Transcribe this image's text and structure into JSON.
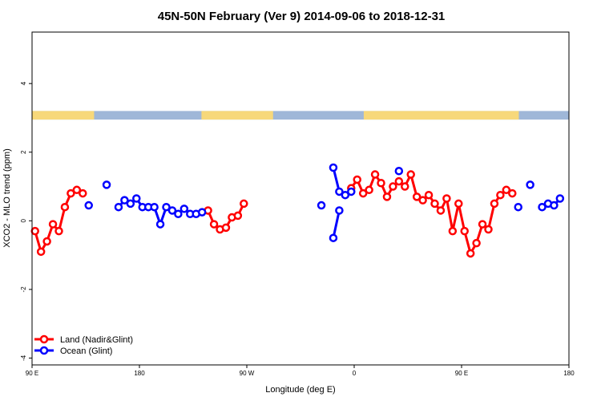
{
  "chart_data": {
    "type": "line",
    "title": "45N-50N February (Ver 9)   2014-09-06 to 2018-12-31",
    "xlabel": "Longitude (deg E)",
    "ylabel": "XCO2 - MLO trend (ppm)",
    "xlim": [
      90,
      540
    ],
    "ylim": [
      -4.2,
      5.5
    ],
    "x_ticks": [
      {
        "value": 90,
        "label": "90 E"
      },
      {
        "value": 180,
        "label": "180"
      },
      {
        "value": 270,
        "label": "90 W"
      },
      {
        "value": 360,
        "label": "0"
      },
      {
        "value": 450,
        "label": "90 E"
      },
      {
        "value": 540,
        "label": "180"
      }
    ],
    "y_ticks": [
      {
        "value": -4,
        "label": "-4"
      },
      {
        "value": -2,
        "label": "-2"
      },
      {
        "value": 0,
        "label": "0"
      },
      {
        "value": 2,
        "label": "2"
      },
      {
        "value": 4,
        "label": "4"
      }
    ],
    "legend_position": "bottom-left",
    "land_bar": {
      "color_land": "#f7d87a",
      "color_ocean": "#9fb7d8",
      "land_intervals": [
        [
          90,
          142
        ],
        [
          232,
          292
        ],
        [
          368,
          498
        ]
      ]
    },
    "series": [
      {
        "name": "Land (Nadir&Glint)",
        "color": "#ff0000",
        "segments": [
          [
            [
              92.5,
              -0.3
            ],
            [
              97.5,
              -0.9
            ],
            [
              102.5,
              -0.6
            ],
            [
              107.5,
              -0.1
            ],
            [
              112.5,
              -0.3
            ],
            [
              117.5,
              0.4
            ],
            [
              122.5,
              0.8
            ],
            [
              127.5,
              0.9
            ],
            [
              132.5,
              0.8
            ]
          ],
          [
            [
              237.5,
              0.3
            ],
            [
              242.5,
              -0.1
            ],
            [
              247.5,
              -0.25
            ],
            [
              252.5,
              -0.2
            ],
            [
              257.5,
              0.1
            ],
            [
              262.5,
              0.15
            ],
            [
              267.5,
              0.5
            ]
          ],
          [
            [
              357.5,
              0.95
            ],
            [
              362.5,
              1.2
            ],
            [
              367.5,
              0.8
            ],
            [
              372.5,
              0.9
            ],
            [
              377.5,
              1.35
            ],
            [
              382.5,
              1.1
            ],
            [
              387.5,
              0.7
            ],
            [
              392.5,
              1.0
            ],
            [
              397.5,
              1.15
            ],
            [
              402.5,
              1.0
            ],
            [
              407.5,
              1.35
            ],
            [
              412.5,
              0.7
            ],
            [
              417.5,
              0.6
            ],
            [
              422.5,
              0.75
            ],
            [
              427.5,
              0.5
            ],
            [
              432.5,
              0.3
            ],
            [
              437.5,
              0.65
            ],
            [
              442.5,
              -0.3
            ],
            [
              447.5,
              0.5
            ],
            [
              452.5,
              -0.3
            ],
            [
              457.5,
              -0.95
            ],
            [
              462.5,
              -0.65
            ],
            [
              467.5,
              -0.1
            ],
            [
              472.5,
              -0.25
            ],
            [
              477.5,
              0.5
            ],
            [
              482.5,
              0.75
            ],
            [
              487.5,
              0.9
            ],
            [
              492.5,
              0.8
            ]
          ]
        ]
      },
      {
        "name": "Ocean (Glint)",
        "color": "#0000ff",
        "segments": [
          [
            [
              137.5,
              0.45
            ]
          ],
          [
            [
              152.5,
              1.05
            ]
          ],
          [
            [
              162.5,
              0.4
            ],
            [
              167.5,
              0.6
            ],
            [
              172.5,
              0.5
            ],
            [
              177.5,
              0.65
            ],
            [
              182.5,
              0.4
            ],
            [
              187.5,
              0.4
            ],
            [
              192.5,
              0.4
            ],
            [
              197.5,
              -0.1
            ],
            [
              202.5,
              0.4
            ],
            [
              207.5,
              0.3
            ],
            [
              212.5,
              0.2
            ],
            [
              217.5,
              0.35
            ],
            [
              222.5,
              0.2
            ],
            [
              227.5,
              0.2
            ],
            [
              232.5,
              0.25
            ]
          ],
          [
            [
              332.5,
              0.45
            ]
          ],
          [
            [
              342.5,
              -0.5
            ],
            [
              347.5,
              0.3
            ]
          ],
          [
            [
              342.5,
              1.55
            ],
            [
              347.5,
              0.85
            ],
            [
              352.5,
              0.75
            ],
            [
              357.5,
              0.85
            ]
          ],
          [
            [
              397.5,
              1.45
            ]
          ],
          [
            [
              497.5,
              0.4
            ]
          ],
          [
            [
              507.5,
              1.05
            ]
          ],
          [
            [
              517.5,
              0.4
            ],
            [
              522.5,
              0.5
            ],
            [
              527.5,
              0.45
            ],
            [
              532.5,
              0.65
            ]
          ]
        ]
      }
    ]
  }
}
